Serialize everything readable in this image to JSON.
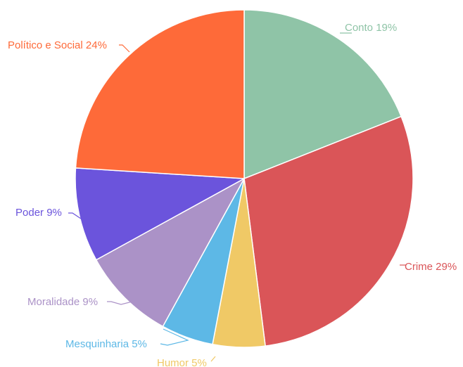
{
  "chart_data": {
    "type": "pie",
    "title": "",
    "categories": [
      "Conto",
      "Crime",
      "Humor",
      "Mesquinharia",
      "Moralidade",
      "Poder",
      "Político e Social"
    ],
    "values": [
      19,
      29,
      5,
      5,
      9,
      9,
      24
    ],
    "labels": [
      "Conto 19%",
      "Crime 29%",
      "Humor 5%",
      "Mesquinharia 5%",
      "Moralidade 9%",
      "Poder 9%",
      "Político e Social 24%"
    ],
    "colors": [
      "#8fc4a7",
      "#da5558",
      "#f0c966",
      "#5db8e6",
      "#ab92c7",
      "#6b54dc",
      "#fe6a39"
    ],
    "legend": "none"
  }
}
